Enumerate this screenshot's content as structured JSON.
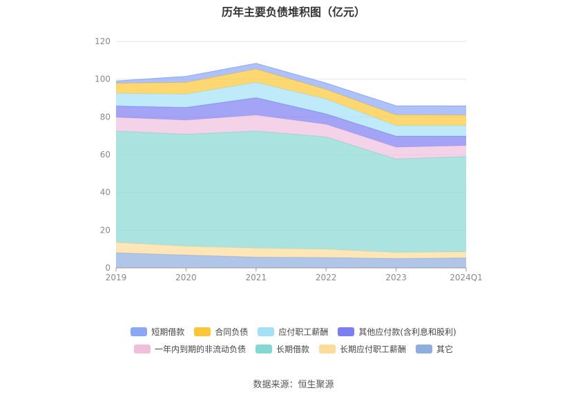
{
  "chart_data": {
    "type": "area",
    "stacked": true,
    "title": "历年主要负债堆积图（亿元）",
    "categories": [
      "2019",
      "2020",
      "2021",
      "2022",
      "2023",
      "2024Q1"
    ],
    "ylim": [
      0,
      120
    ],
    "yticks": [
      "0",
      "20",
      "40",
      "60",
      "80",
      "100",
      "120"
    ],
    "grid": true,
    "legend_position": "bottom",
    "series": [
      {
        "name": "其它",
        "color": "#8eaede",
        "values": [
          8,
          6.8,
          5.7,
          5.5,
          5,
          5.3
        ]
      },
      {
        "name": "长期应付职工薪酬",
        "color": "#fddb9a",
        "values": [
          5.5,
          4.7,
          4.8,
          4.4,
          3.2,
          3.2
        ]
      },
      {
        "name": "长期借款",
        "color": "#86d7d2",
        "values": [
          59,
          59.3,
          62,
          59.5,
          49.5,
          50.5
        ]
      },
      {
        "name": "一年内到期的非流动负债",
        "color": "#f0bfde",
        "values": [
          7.3,
          7.5,
          8.5,
          6.7,
          6.3,
          5.8
        ]
      },
      {
        "name": "其他应付款(含利息和股利)",
        "color": "#7d7ef3",
        "values": [
          6,
          6.7,
          9.2,
          5.5,
          5.8,
          5
        ]
      },
      {
        "name": "应付职工薪酬",
        "color": "#a4e1f7",
        "values": [
          6.7,
          7.1,
          8.1,
          7.9,
          5.6,
          5.6
        ]
      },
      {
        "name": "合同负债",
        "color": "#fcc636",
        "values": [
          5.3,
          6.2,
          7.1,
          5.1,
          5.7,
          5.6
        ]
      },
      {
        "name": "短期借款",
        "color": "#8ba8f7",
        "values": [
          1.2,
          3.2,
          3,
          3.3,
          4.8,
          4.8
        ]
      }
    ],
    "legend_rows": [
      [
        "短期借款",
        "合同负债",
        "应付职工薪酬",
        "其他应付款(含利息和股利)"
      ],
      [
        "一年内到期的非流动负债",
        "长期借款",
        "长期应付职工薪酬",
        "其它"
      ]
    ]
  },
  "source_text": "数据来源：恒生聚源"
}
